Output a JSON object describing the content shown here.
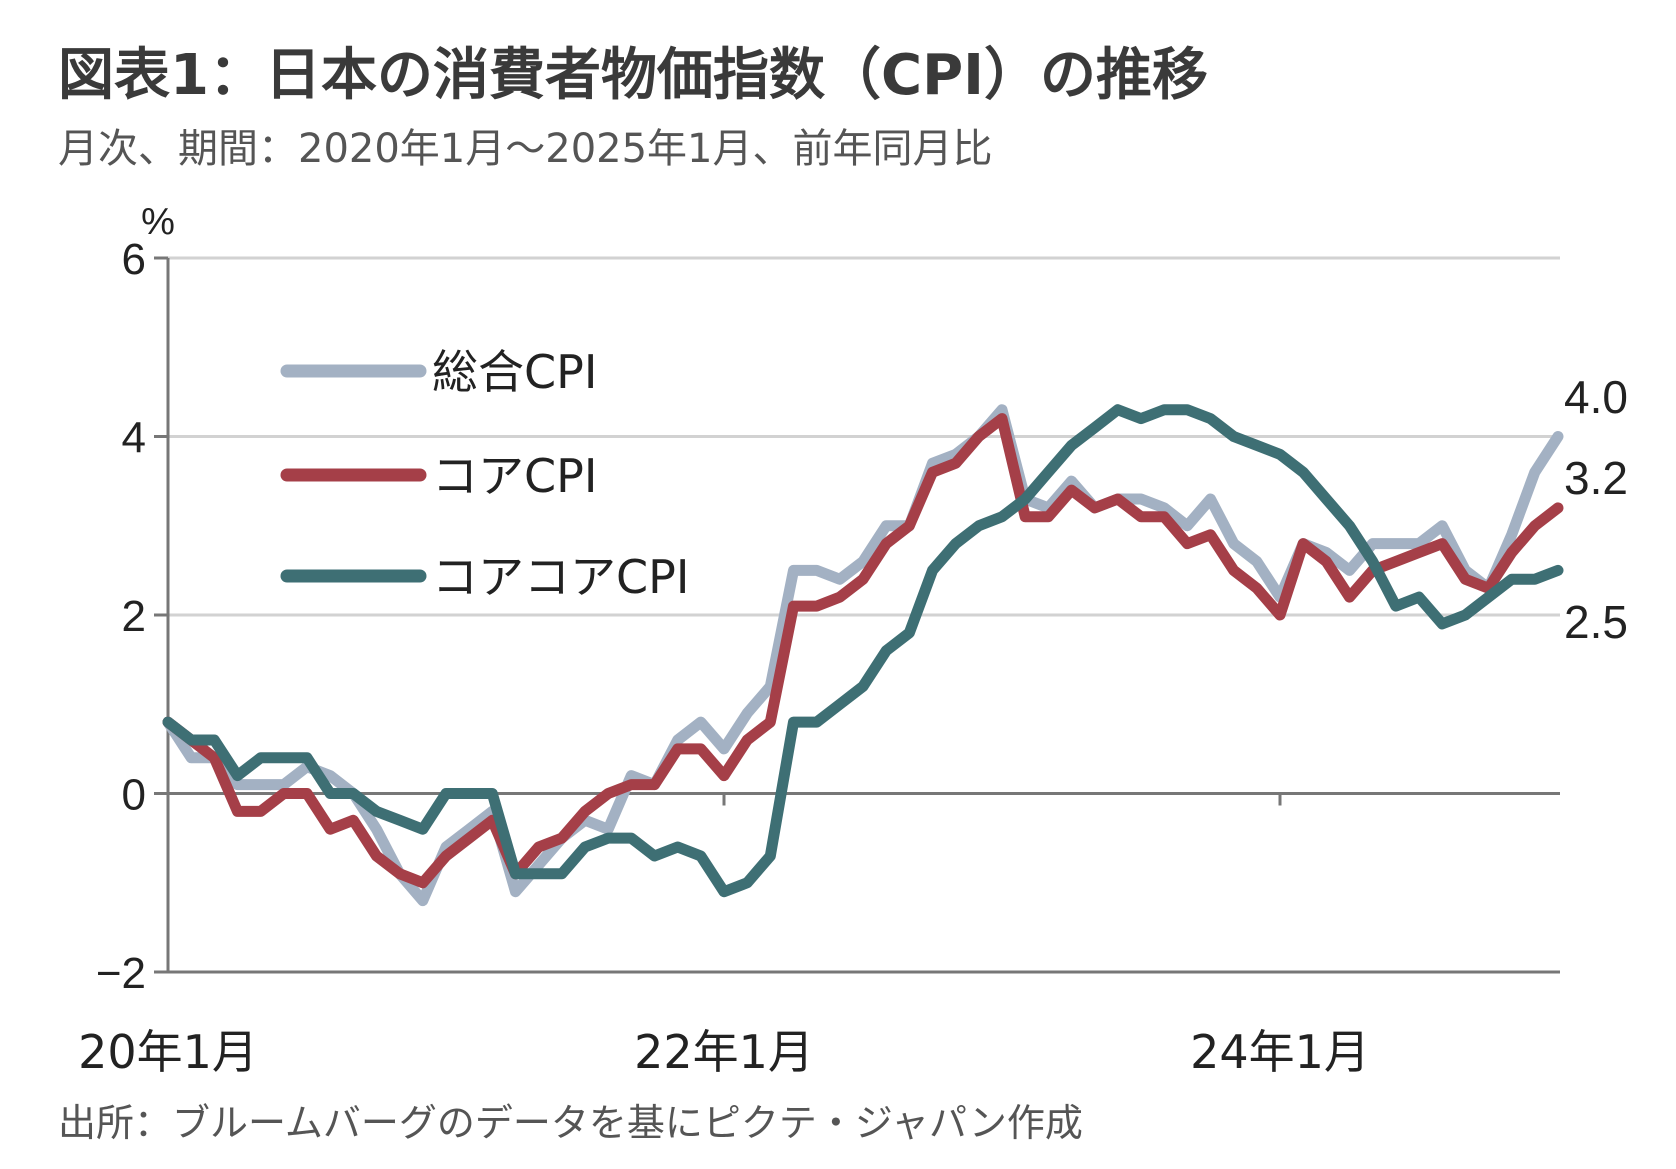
{
  "header": {
    "title": "図表1：日本の消費者物価指数（CPI）の推移",
    "subtitle": "月次、期間：2020年1月～2025年1月、前年同月比"
  },
  "footer": {
    "source": "出所：ブルームバーグのデータを基にピクテ・ジャパン作成"
  },
  "chart_data": {
    "type": "line",
    "unit_label": "%",
    "ylim": [
      -2,
      6
    ],
    "yticks": [
      -2,
      0,
      2,
      4,
      6
    ],
    "x_start": "2020-01",
    "x_end": "2025-01",
    "x_tick_labels": [
      {
        "month": "2020-01",
        "label": "20年1月"
      },
      {
        "month": "2022-01",
        "label": "22年1月"
      },
      {
        "month": "2024-01",
        "label": "24年1月"
      }
    ],
    "grid": true,
    "legend_position": "top-left",
    "series": [
      {
        "name": "総合CPI",
        "color": "#a3b1c3",
        "end_label": "4.0",
        "values": [
          0.8,
          0.4,
          0.4,
          0.1,
          0.1,
          0.1,
          0.3,
          0.2,
          0.0,
          -0.4,
          -0.9,
          -1.2,
          -0.6,
          -0.4,
          -0.2,
          -1.1,
          -0.8,
          -0.5,
          -0.3,
          -0.4,
          0.2,
          0.1,
          0.6,
          0.8,
          0.5,
          0.9,
          1.2,
          2.5,
          2.5,
          2.4,
          2.6,
          3.0,
          3.0,
          3.7,
          3.8,
          4.0,
          4.3,
          3.3,
          3.2,
          3.5,
          3.2,
          3.3,
          3.3,
          3.2,
          3.0,
          3.3,
          2.8,
          2.6,
          2.2,
          2.8,
          2.7,
          2.5,
          2.8,
          2.8,
          2.8,
          3.0,
          2.5,
          2.3,
          2.9,
          3.6,
          4.0
        ]
      },
      {
        "name": "コアCPI",
        "color": "#a53f48",
        "end_label": "3.2",
        "values": [
          0.8,
          0.6,
          0.4,
          -0.2,
          -0.2,
          0.0,
          0.0,
          -0.4,
          -0.3,
          -0.7,
          -0.9,
          -1.0,
          -0.7,
          -0.5,
          -0.3,
          -0.9,
          -0.6,
          -0.5,
          -0.2,
          0.0,
          0.1,
          0.1,
          0.5,
          0.5,
          0.2,
          0.6,
          0.8,
          2.1,
          2.1,
          2.2,
          2.4,
          2.8,
          3.0,
          3.6,
          3.7,
          4.0,
          4.2,
          3.1,
          3.1,
          3.4,
          3.2,
          3.3,
          3.1,
          3.1,
          2.8,
          2.9,
          2.5,
          2.3,
          2.0,
          2.8,
          2.6,
          2.2,
          2.5,
          2.6,
          2.7,
          2.8,
          2.4,
          2.3,
          2.7,
          3.0,
          3.2
        ]
      },
      {
        "name": "コアコアCPI",
        "color": "#3e6f74",
        "end_label": "2.5",
        "values": [
          0.8,
          0.6,
          0.6,
          0.2,
          0.4,
          0.4,
          0.4,
          0.0,
          0.0,
          -0.2,
          -0.3,
          -0.4,
          0.0,
          0.0,
          0.0,
          -0.9,
          -0.9,
          -0.9,
          -0.6,
          -0.5,
          -0.5,
          -0.7,
          -0.6,
          -0.7,
          -1.1,
          -1.0,
          -0.7,
          0.8,
          0.8,
          1.0,
          1.2,
          1.6,
          1.8,
          2.5,
          2.8,
          3.0,
          3.1,
          3.3,
          3.6,
          3.9,
          4.1,
          4.3,
          4.2,
          4.3,
          4.3,
          4.2,
          4.0,
          3.9,
          3.8,
          3.6,
          3.3,
          3.0,
          2.6,
          2.1,
          2.2,
          1.9,
          2.0,
          2.2,
          2.4,
          2.4,
          2.5
        ]
      }
    ]
  }
}
